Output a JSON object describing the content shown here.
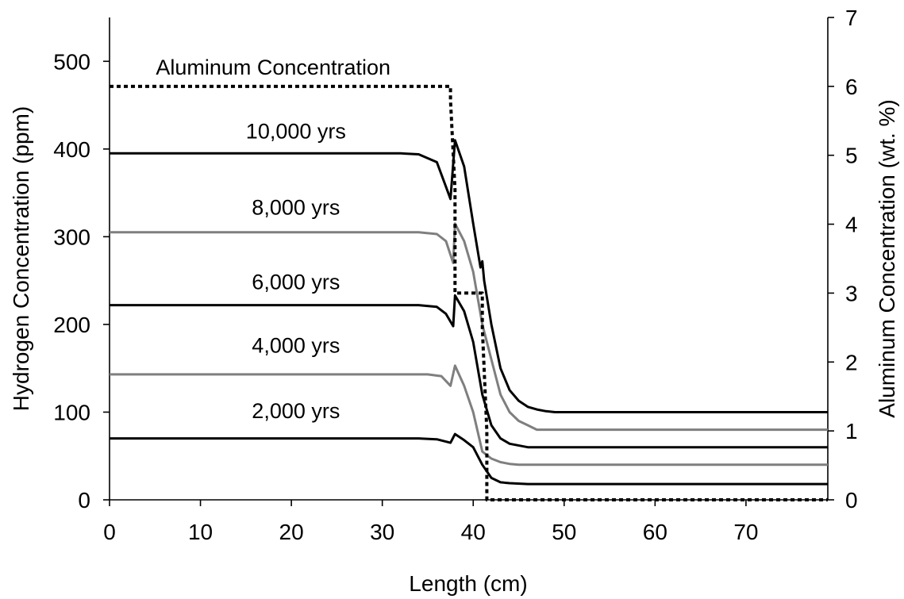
{
  "chart_data": {
    "type": "line",
    "xlabel": "Length (cm)",
    "ylabel": "Hydrogen Concentration (ppm)",
    "y2label": "Aluminum Concentration (wt. %)",
    "xlim": [
      0,
      79
    ],
    "ylim": [
      0,
      550
    ],
    "y2lim": [
      0,
      7
    ],
    "xticks": [
      0,
      10,
      20,
      30,
      40,
      50,
      60,
      70
    ],
    "yticks": [
      0,
      100,
      200,
      300,
      400,
      500
    ],
    "y2ticks": [
      0,
      1,
      2,
      3,
      4,
      5,
      6,
      7
    ],
    "grid": false,
    "series": [
      {
        "name": "2,000 yrs",
        "axis": "left",
        "color": "#000000",
        "x": [
          0,
          34,
          36,
          37.5,
          38,
          39,
          40,
          41,
          42,
          43,
          44,
          46,
          79
        ],
        "y": [
          70,
          70,
          69,
          65,
          75,
          68,
          60,
          40,
          25,
          20,
          19,
          18,
          18
        ]
      },
      {
        "name": "4,000 yrs",
        "axis": "left",
        "color": "#7f7f7f",
        "x": [
          0,
          35,
          36.5,
          37.5,
          38,
          39,
          40,
          41,
          42,
          43,
          44,
          45,
          46,
          79
        ],
        "y": [
          143,
          143,
          141,
          130,
          153,
          130,
          100,
          55,
          47,
          43,
          41,
          40,
          40,
          40
        ]
      },
      {
        "name": "6,000 yrs",
        "axis": "left",
        "color": "#000000",
        "x": [
          0,
          34,
          36,
          37,
          37.8,
          38,
          39,
          40,
          41,
          42,
          43,
          44,
          46,
          79
        ],
        "y": [
          222,
          222,
          220,
          212,
          198,
          233,
          215,
          180,
          120,
          85,
          70,
          64,
          60,
          60
        ]
      },
      {
        "name": "8,000 yrs",
        "axis": "left",
        "color": "#7f7f7f",
        "x": [
          0,
          34,
          36,
          37,
          37.8,
          38,
          39,
          40,
          41,
          42,
          43,
          44,
          45,
          46,
          47,
          79
        ],
        "y": [
          305,
          305,
          303,
          295,
          270,
          315,
          295,
          260,
          200,
          160,
          120,
          100,
          90,
          85,
          80,
          80
        ]
      },
      {
        "name": "10,000 yrs",
        "axis": "left",
        "color": "#000000",
        "x": [
          0,
          32,
          34,
          36,
          37.5,
          38,
          39,
          40,
          40.8,
          41,
          41.2,
          42,
          43,
          44,
          45,
          46,
          47,
          48,
          49,
          79
        ],
        "y": [
          395,
          395,
          394,
          385,
          343,
          410,
          380,
          315,
          265,
          272,
          250,
          200,
          150,
          125,
          113,
          106,
          103,
          101,
          100,
          100
        ]
      },
      {
        "name": "Aluminum Concentration",
        "axis": "right",
        "color": "#000000",
        "dashed": true,
        "x": [
          0,
          37.5,
          37.5,
          38,
          38,
          41,
          41,
          41.5,
          41.5,
          79
        ],
        "y": [
          6,
          6,
          5.8,
          4.5,
          3,
          3,
          2.5,
          1,
          0,
          0
        ]
      }
    ],
    "annotations": [
      {
        "text": "Aluminum Concentration",
        "x": 18,
        "y": 485
      },
      {
        "text": "10,000 yrs",
        "x": 20.5,
        "y": 412
      },
      {
        "text": "8,000 yrs",
        "x": 20.5,
        "y": 325
      },
      {
        "text": "6,000 yrs",
        "x": 20.5,
        "y": 240
      },
      {
        "text": "4,000 yrs",
        "x": 20.5,
        "y": 168
      },
      {
        "text": "2,000 yrs",
        "x": 20.5,
        "y": 93
      }
    ]
  }
}
